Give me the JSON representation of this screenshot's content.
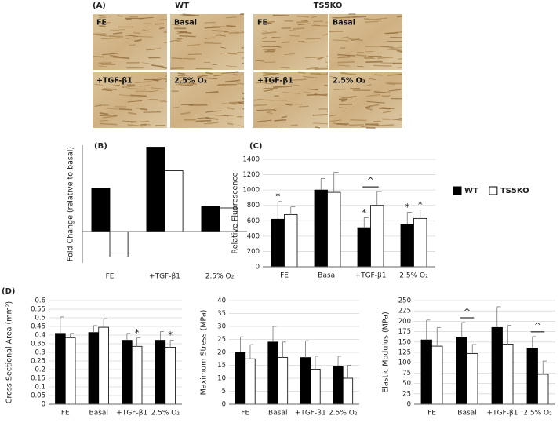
{
  "figure_a": {
    "label": "(A)",
    "groups": [
      {
        "title": "WT",
        "tiles": [
          "FE",
          "Basal",
          "+TGF-β1",
          "2.5% O₂"
        ]
      },
      {
        "title": "TS5KO",
        "tiles": [
          "FE",
          "Basal",
          "+TGF-β1",
          "2.5% O₂"
        ]
      }
    ]
  },
  "chart_data": [
    {
      "type": "bar",
      "panel_label": "(B)",
      "y_label": "Fold Change (relative to basal)",
      "categories": [
        "FE",
        "+TGF-β1",
        "2.5% O₂"
      ],
      "series": [
        {
          "name": "WT",
          "color": "#000000",
          "values": [
            2.2,
            4.3,
            1.3
          ]
        },
        {
          "name": "TS5KO",
          "color": "#ffffff",
          "values": [
            -1.3,
            3.1,
            1.2
          ]
        }
      ],
      "ylim": [
        -1.6,
        4.4
      ],
      "grid": false
    },
    {
      "type": "bar",
      "panel_label": "(C)",
      "y_label": "Relative Fluorescence",
      "categories": [
        "FE",
        "Basal",
        "+TGF-β1",
        "2.5% O₂"
      ],
      "series": [
        {
          "name": "WT",
          "color": "#000000",
          "values": [
            620,
            1000,
            510,
            550
          ],
          "errors": [
            230,
            150,
            130,
            160
          ],
          "markers": [
            "*",
            null,
            "*",
            "*"
          ]
        },
        {
          "name": "TS5KO",
          "color": "#ffffff",
          "values": [
            680,
            970,
            800,
            630
          ],
          "errors": [
            100,
            260,
            180,
            110
          ],
          "markers": [
            null,
            null,
            null,
            "*"
          ]
        }
      ],
      "pair_marks": [
        null,
        null,
        "^",
        null
      ],
      "ylim": [
        0,
        1400
      ],
      "yticks": [
        0,
        200,
        400,
        600,
        800,
        1000,
        1200,
        1400
      ],
      "grid": true,
      "legend": "right"
    },
    {
      "type": "bar",
      "panel_label": "(D)",
      "y_label": "Cross Sectional Area (mm²)",
      "categories": [
        "FE",
        "Basal",
        "+TGF-β1",
        "2.5% O₂"
      ],
      "series": [
        {
          "name": "WT",
          "color": "#000000",
          "values": [
            0.41,
            0.415,
            0.37,
            0.37
          ],
          "errors": [
            0.095,
            0.04,
            0.04,
            0.05
          ]
        },
        {
          "name": "TS5KO",
          "color": "#ffffff",
          "values": [
            0.385,
            0.445,
            0.335,
            0.33
          ],
          "errors": [
            0.025,
            0.05,
            0.05,
            0.04
          ],
          "markers": [
            null,
            null,
            "*",
            "*"
          ]
        }
      ],
      "ylim": [
        0,
        0.6
      ],
      "yticks": [
        0,
        0.05,
        0.1,
        0.15,
        0.2,
        0.25,
        0.3,
        0.35,
        0.4,
        0.45,
        0.5,
        0.55,
        0.6
      ],
      "grid": true
    },
    {
      "type": "bar",
      "y_label": "Maximum Stress (MPa)",
      "categories": [
        "FE",
        "Basal",
        "+TGF-β1",
        "2.5% O₂"
      ],
      "series": [
        {
          "name": "WT",
          "color": "#000000",
          "values": [
            20,
            24,
            18,
            14.5
          ],
          "errors": [
            6,
            6,
            6.5,
            4
          ]
        },
        {
          "name": "TS5KO",
          "color": "#ffffff",
          "values": [
            17.5,
            18,
            13.5,
            10
          ],
          "errors": [
            5.5,
            6,
            5,
            5
          ]
        }
      ],
      "ylim": [
        0,
        40
      ],
      "yticks": [
        0,
        5,
        10,
        15,
        20,
        25,
        30,
        35,
        40
      ],
      "grid": true
    },
    {
      "type": "bar",
      "y_label": "Elastic Modulus (MPa)",
      "categories": [
        "FE",
        "Basal",
        "+TGF-β1",
        "2.5% O₂"
      ],
      "series": [
        {
          "name": "WT",
          "color": "#000000",
          "values": [
            155,
            162,
            185,
            135
          ],
          "errors": [
            48,
            35,
            50,
            28
          ]
        },
        {
          "name": "TS5KO",
          "color": "#ffffff",
          "values": [
            140,
            122,
            145,
            72
          ],
          "errors": [
            45,
            22,
            45,
            32
          ]
        }
      ],
      "pair_marks": [
        null,
        "^",
        null,
        "^"
      ],
      "ylim": [
        0,
        250
      ],
      "yticks": [
        0,
        25,
        50,
        75,
        100,
        125,
        150,
        175,
        200,
        225,
        250
      ],
      "grid": true
    }
  ]
}
